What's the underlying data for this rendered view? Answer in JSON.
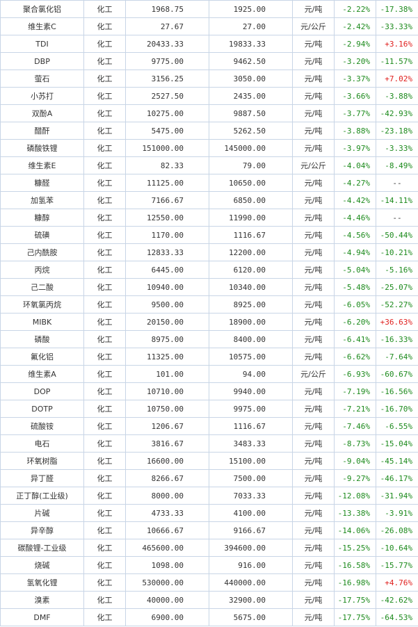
{
  "colors": {
    "down": "#1c8a1c",
    "up": "#e0201e",
    "name": "#1a4b9c",
    "border": "#c8d5e6"
  },
  "rows": [
    {
      "name": "聚合氯化铝",
      "cat": "化工",
      "p1": "1968.75",
      "p2": "1925.00",
      "unit": "元/吨",
      "c1": "-2.22%",
      "c2": "-17.38%"
    },
    {
      "name": "维生素C",
      "cat": "化工",
      "p1": "27.67",
      "p2": "27.00",
      "unit": "元/公斤",
      "c1": "-2.42%",
      "c2": "-33.33%"
    },
    {
      "name": "TDI",
      "cat": "化工",
      "p1": "20433.33",
      "p2": "19833.33",
      "unit": "元/吨",
      "c1": "-2.94%",
      "c2": "+3.16%"
    },
    {
      "name": "DBP",
      "cat": "化工",
      "p1": "9775.00",
      "p2": "9462.50",
      "unit": "元/吨",
      "c1": "-3.20%",
      "c2": "-11.57%"
    },
    {
      "name": "萤石",
      "cat": "化工",
      "p1": "3156.25",
      "p2": "3050.00",
      "unit": "元/吨",
      "c1": "-3.37%",
      "c2": "+7.02%"
    },
    {
      "name": "小苏打",
      "cat": "化工",
      "p1": "2527.50",
      "p2": "2435.00",
      "unit": "元/吨",
      "c1": "-3.66%",
      "c2": "-3.88%"
    },
    {
      "name": "双酚A",
      "cat": "化工",
      "p1": "10275.00",
      "p2": "9887.50",
      "unit": "元/吨",
      "c1": "-3.77%",
      "c2": "-42.93%"
    },
    {
      "name": "醋酐",
      "cat": "化工",
      "p1": "5475.00",
      "p2": "5262.50",
      "unit": "元/吨",
      "c1": "-3.88%",
      "c2": "-23.18%"
    },
    {
      "name": "磷酸铁锂",
      "cat": "化工",
      "p1": "151000.00",
      "p2": "145000.00",
      "unit": "元/吨",
      "c1": "-3.97%",
      "c2": "-3.33%"
    },
    {
      "name": "维生素E",
      "cat": "化工",
      "p1": "82.33",
      "p2": "79.00",
      "unit": "元/公斤",
      "c1": "-4.04%",
      "c2": "-8.49%"
    },
    {
      "name": "糠醛",
      "cat": "化工",
      "p1": "11125.00",
      "p2": "10650.00",
      "unit": "元/吨",
      "c1": "-4.27%",
      "c2": "--"
    },
    {
      "name": "加氢苯",
      "cat": "化工",
      "p1": "7166.67",
      "p2": "6850.00",
      "unit": "元/吨",
      "c1": "-4.42%",
      "c2": "-14.11%"
    },
    {
      "name": "糠醇",
      "cat": "化工",
      "p1": "12550.00",
      "p2": "11990.00",
      "unit": "元/吨",
      "c1": "-4.46%",
      "c2": "--"
    },
    {
      "name": "硫磺",
      "cat": "化工",
      "p1": "1170.00",
      "p2": "1116.67",
      "unit": "元/吨",
      "c1": "-4.56%",
      "c2": "-50.44%"
    },
    {
      "name": "己内酰胺",
      "cat": "化工",
      "p1": "12833.33",
      "p2": "12200.00",
      "unit": "元/吨",
      "c1": "-4.94%",
      "c2": "-10.21%"
    },
    {
      "name": "丙烷",
      "cat": "化工",
      "p1": "6445.00",
      "p2": "6120.00",
      "unit": "元/吨",
      "c1": "-5.04%",
      "c2": "-5.16%"
    },
    {
      "name": "己二酸",
      "cat": "化工",
      "p1": "10940.00",
      "p2": "10340.00",
      "unit": "元/吨",
      "c1": "-5.48%",
      "c2": "-25.07%"
    },
    {
      "name": "环氧氯丙烷",
      "cat": "化工",
      "p1": "9500.00",
      "p2": "8925.00",
      "unit": "元/吨",
      "c1": "-6.05%",
      "c2": "-52.27%"
    },
    {
      "name": "MIBK",
      "cat": "化工",
      "p1": "20150.00",
      "p2": "18900.00",
      "unit": "元/吨",
      "c1": "-6.20%",
      "c2": "+36.63%"
    },
    {
      "name": "磷酸",
      "cat": "化工",
      "p1": "8975.00",
      "p2": "8400.00",
      "unit": "元/吨",
      "c1": "-6.41%",
      "c2": "-16.33%"
    },
    {
      "name": "氟化铝",
      "cat": "化工",
      "p1": "11325.00",
      "p2": "10575.00",
      "unit": "元/吨",
      "c1": "-6.62%",
      "c2": "-7.64%"
    },
    {
      "name": "维生素A",
      "cat": "化工",
      "p1": "101.00",
      "p2": "94.00",
      "unit": "元/公斤",
      "c1": "-6.93%",
      "c2": "-60.67%"
    },
    {
      "name": "DOP",
      "cat": "化工",
      "p1": "10710.00",
      "p2": "9940.00",
      "unit": "元/吨",
      "c1": "-7.19%",
      "c2": "-16.56%"
    },
    {
      "name": "DOTP",
      "cat": "化工",
      "p1": "10750.00",
      "p2": "9975.00",
      "unit": "元/吨",
      "c1": "-7.21%",
      "c2": "-16.70%"
    },
    {
      "name": "硫酸铵",
      "cat": "化工",
      "p1": "1206.67",
      "p2": "1116.67",
      "unit": "元/吨",
      "c1": "-7.46%",
      "c2": "-6.55%"
    },
    {
      "name": "电石",
      "cat": "化工",
      "p1": "3816.67",
      "p2": "3483.33",
      "unit": "元/吨",
      "c1": "-8.73%",
      "c2": "-15.04%"
    },
    {
      "name": "环氧树脂",
      "cat": "化工",
      "p1": "16600.00",
      "p2": "15100.00",
      "unit": "元/吨",
      "c1": "-9.04%",
      "c2": "-45.14%"
    },
    {
      "name": "异丁醛",
      "cat": "化工",
      "p1": "8266.67",
      "p2": "7500.00",
      "unit": "元/吨",
      "c1": "-9.27%",
      "c2": "-46.17%"
    },
    {
      "name": "正丁醇(工业级)",
      "cat": "化工",
      "p1": "8000.00",
      "p2": "7033.33",
      "unit": "元/吨",
      "c1": "-12.08%",
      "c2": "-31.94%"
    },
    {
      "name": "片碱",
      "cat": "化工",
      "p1": "4733.33",
      "p2": "4100.00",
      "unit": "元/吨",
      "c1": "-13.38%",
      "c2": "-3.91%"
    },
    {
      "name": "异辛醇",
      "cat": "化工",
      "p1": "10666.67",
      "p2": "9166.67",
      "unit": "元/吨",
      "c1": "-14.06%",
      "c2": "-26.08%"
    },
    {
      "name": "碳酸锂-工业级",
      "cat": "化工",
      "p1": "465600.00",
      "p2": "394600.00",
      "unit": "元/吨",
      "c1": "-15.25%",
      "c2": "-10.64%"
    },
    {
      "name": "烧碱",
      "cat": "化工",
      "p1": "1098.00",
      "p2": "916.00",
      "unit": "元/吨",
      "c1": "-16.58%",
      "c2": "-15.77%"
    },
    {
      "name": "氢氧化锂",
      "cat": "化工",
      "p1": "530000.00",
      "p2": "440000.00",
      "unit": "元/吨",
      "c1": "-16.98%",
      "c2": "+4.76%"
    },
    {
      "name": "溴素",
      "cat": "化工",
      "p1": "40000.00",
      "p2": "32900.00",
      "unit": "元/吨",
      "c1": "-17.75%",
      "c2": "-42.62%"
    },
    {
      "name": "DMF",
      "cat": "化工",
      "p1": "6900.00",
      "p2": "5675.00",
      "unit": "元/吨",
      "c1": "-17.75%",
      "c2": "-64.53%"
    }
  ]
}
